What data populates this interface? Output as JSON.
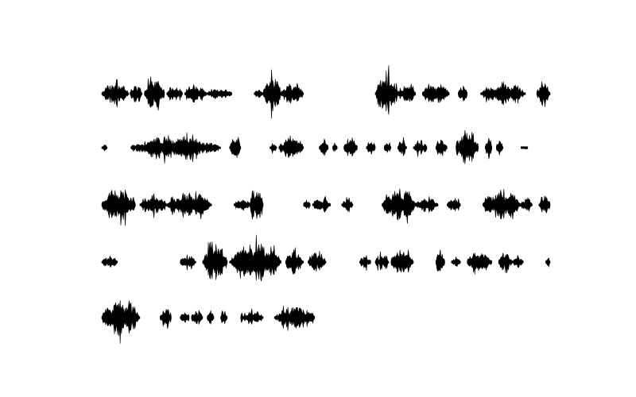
{
  "chart_data": {
    "type": "waveform",
    "rows": 5,
    "waveform_color": "#000000",
    "background_color": "#ffffff",
    "segments_per_row": [
      [
        {
          "t0": 0.0,
          "t1": 0.06,
          "amp": 0.55
        },
        {
          "t0": 0.063,
          "t1": 0.09,
          "amp": 0.5
        },
        {
          "t0": 0.095,
          "t1": 0.14,
          "amp": 0.95
        },
        {
          "t0": 0.145,
          "t1": 0.18,
          "amp": 0.4
        },
        {
          "t0": 0.185,
          "t1": 0.235,
          "amp": 0.45
        },
        {
          "t0": 0.235,
          "t1": 0.29,
          "amp": 0.3
        },
        {
          "t0": 0.34,
          "t1": 0.36,
          "amp": 0.2
        },
        {
          "t0": 0.36,
          "t1": 0.4,
          "amp": 0.95
        },
        {
          "t0": 0.4,
          "t1": 0.45,
          "amp": 0.6
        },
        {
          "t0": 0.61,
          "t1": 0.66,
          "amp": 1.0
        },
        {
          "t0": 0.66,
          "t1": 0.7,
          "amp": 0.6
        },
        {
          "t0": 0.715,
          "t1": 0.775,
          "amp": 0.55
        },
        {
          "t0": 0.795,
          "t1": 0.815,
          "amp": 0.5
        },
        {
          "t0": 0.845,
          "t1": 0.945,
          "amp": 0.5
        },
        {
          "t0": 0.97,
          "t1": 1.0,
          "amp": 0.6
        }
      ],
      [
        {
          "t0": 0.0,
          "t1": 0.012,
          "amp": 0.2
        },
        {
          "t0": 0.065,
          "t1": 0.265,
          "amp": 0.6
        },
        {
          "t0": 0.285,
          "t1": 0.31,
          "amp": 0.55
        },
        {
          "t0": 0.375,
          "t1": 0.39,
          "amp": 0.25
        },
        {
          "t0": 0.395,
          "t1": 0.45,
          "amp": 0.6
        },
        {
          "t0": 0.485,
          "t1": 0.505,
          "amp": 0.45
        },
        {
          "t0": 0.515,
          "t1": 0.525,
          "amp": 0.25
        },
        {
          "t0": 0.54,
          "t1": 0.57,
          "amp": 0.55
        },
        {
          "t0": 0.59,
          "t1": 0.61,
          "amp": 0.35
        },
        {
          "t0": 0.63,
          "t1": 0.645,
          "amp": 0.35
        },
        {
          "t0": 0.66,
          "t1": 0.68,
          "amp": 0.4
        },
        {
          "t0": 0.695,
          "t1": 0.725,
          "amp": 0.4
        },
        {
          "t0": 0.745,
          "t1": 0.77,
          "amp": 0.4
        },
        {
          "t0": 0.79,
          "t1": 0.84,
          "amp": 0.95
        },
        {
          "t0": 0.855,
          "t1": 0.87,
          "amp": 0.5
        },
        {
          "t0": 0.88,
          "t1": 0.895,
          "amp": 0.4
        },
        {
          "t0": 0.935,
          "t1": 0.95,
          "amp": 0.1
        }
      ],
      [
        {
          "t0": 0.0,
          "t1": 0.075,
          "amp": 0.85
        },
        {
          "t0": 0.085,
          "t1": 0.145,
          "amp": 0.5
        },
        {
          "t0": 0.145,
          "t1": 0.245,
          "amp": 0.65
        },
        {
          "t0": 0.295,
          "t1": 0.33,
          "amp": 0.35
        },
        {
          "t0": 0.33,
          "t1": 0.36,
          "amp": 1.0
        },
        {
          "t0": 0.45,
          "t1": 0.465,
          "amp": 0.25
        },
        {
          "t0": 0.47,
          "t1": 0.51,
          "amp": 0.35
        },
        {
          "t0": 0.535,
          "t1": 0.56,
          "amp": 0.35
        },
        {
          "t0": 0.625,
          "t1": 0.7,
          "amp": 0.95
        },
        {
          "t0": 0.7,
          "t1": 0.75,
          "amp": 0.4
        },
        {
          "t0": 0.77,
          "t1": 0.8,
          "amp": 0.4
        },
        {
          "t0": 0.85,
          "t1": 0.935,
          "amp": 0.7
        },
        {
          "t0": 0.935,
          "t1": 0.96,
          "amp": 0.4
        },
        {
          "t0": 0.975,
          "t1": 1.0,
          "amp": 0.55
        }
      ],
      [
        {
          "t0": 0.0,
          "t1": 0.035,
          "amp": 0.3
        },
        {
          "t0": 0.175,
          "t1": 0.21,
          "amp": 0.35
        },
        {
          "t0": 0.225,
          "t1": 0.28,
          "amp": 0.95
        },
        {
          "t0": 0.285,
          "t1": 0.4,
          "amp": 1.0
        },
        {
          "t0": 0.41,
          "t1": 0.45,
          "amp": 0.6
        },
        {
          "t0": 0.46,
          "t1": 0.5,
          "amp": 0.55
        },
        {
          "t0": 0.575,
          "t1": 0.6,
          "amp": 0.35
        },
        {
          "t0": 0.61,
          "t1": 0.64,
          "amp": 0.45
        },
        {
          "t0": 0.645,
          "t1": 0.695,
          "amp": 0.75
        },
        {
          "t0": 0.745,
          "t1": 0.765,
          "amp": 0.7
        },
        {
          "t0": 0.78,
          "t1": 0.8,
          "amp": 0.25
        },
        {
          "t0": 0.815,
          "t1": 0.87,
          "amp": 0.55
        },
        {
          "t0": 0.885,
          "t1": 0.915,
          "amp": 0.55
        },
        {
          "t0": 0.915,
          "t1": 0.94,
          "amp": 0.25
        },
        {
          "t0": 0.99,
          "t1": 1.0,
          "amp": 0.3
        }
      ],
      [
        {
          "t0": 0.0,
          "t1": 0.085,
          "amp": 0.9
        },
        {
          "t0": 0.13,
          "t1": 0.155,
          "amp": 0.55
        },
        {
          "t0": 0.175,
          "t1": 0.195,
          "amp": 0.3
        },
        {
          "t0": 0.2,
          "t1": 0.225,
          "amp": 0.4
        },
        {
          "t0": 0.235,
          "t1": 0.25,
          "amp": 0.4
        },
        {
          "t0": 0.265,
          "t1": 0.28,
          "amp": 0.4
        },
        {
          "t0": 0.31,
          "t1": 0.315,
          "amp": 0.3
        },
        {
          "t0": 0.315,
          "t1": 0.36,
          "amp": 0.35
        },
        {
          "t0": 0.385,
          "t1": 0.475,
          "amp": 0.6
        }
      ]
    ]
  }
}
